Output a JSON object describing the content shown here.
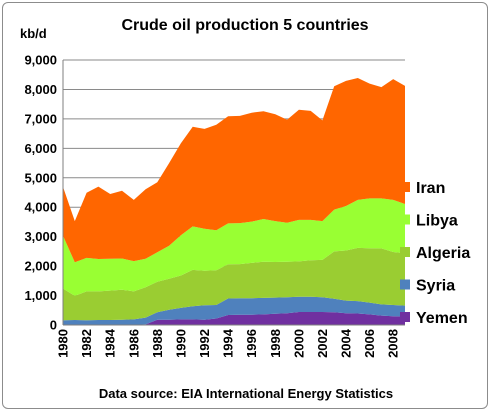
{
  "chart_data": {
    "type": "area",
    "stacked": true,
    "title": "Crude oil production 5 countries",
    "ylabel": "kb/d",
    "xlabel": "",
    "source": "Data source: EIA International Energy Statistics",
    "ylim": [
      0,
      9000
    ],
    "yticks": [
      "0",
      "1,000",
      "2,000",
      "3,000",
      "4,000",
      "5,000",
      "6,000",
      "7,000",
      "8,000",
      "9,000"
    ],
    "ytick_values": [
      0,
      1000,
      2000,
      3000,
      4000,
      5000,
      6000,
      7000,
      8000,
      9000
    ],
    "xtick_labels": [
      "1980",
      "1982",
      "1984",
      "1986",
      "1988",
      "1990",
      "1992",
      "1994",
      "1996",
      "1998",
      "2000",
      "2002",
      "2004",
      "2006",
      "2008"
    ],
    "x": [
      1980,
      1981,
      1982,
      1983,
      1984,
      1985,
      1986,
      1987,
      1988,
      1989,
      1990,
      1991,
      1992,
      1993,
      1994,
      1995,
      1996,
      1997,
      1998,
      1999,
      2000,
      2001,
      2002,
      2003,
      2004,
      2005,
      2006,
      2007,
      2008,
      2009
    ],
    "grid": "horizontal",
    "legend_position": "right",
    "series": [
      {
        "name": "Yemen",
        "color": "#7030a0",
        "values": [
          0,
          0,
          0,
          0,
          0,
          0,
          10,
          20,
          180,
          180,
          190,
          190,
          180,
          220,
          340,
          350,
          350,
          360,
          380,
          400,
          440,
          440,
          440,
          430,
          400,
          390,
          360,
          320,
          300,
          290
        ]
      },
      {
        "name": "Syria",
        "color": "#4f81bd",
        "values": [
          160,
          170,
          160,
          170,
          170,
          180,
          180,
          230,
          250,
          340,
          390,
          450,
          490,
          460,
          560,
          560,
          560,
          560,
          550,
          540,
          520,
          520,
          500,
          460,
          430,
          420,
          400,
          380,
          380,
          370
        ]
      },
      {
        "name": "Algeria",
        "color": "#9acd32",
        "values": [
          1080,
          820,
          980,
          970,
          1000,
          1020,
          950,
          1030,
          1040,
          1050,
          1100,
          1230,
          1170,
          1180,
          1160,
          1160,
          1200,
          1230,
          1210,
          1210,
          1200,
          1240,
          1270,
          1610,
          1700,
          1810,
          1850,
          1900,
          1800,
          1780
        ]
      },
      {
        "name": "Libya",
        "color": "#99ff33",
        "values": [
          1790,
          1140,
          1140,
          1100,
          1080,
          1060,
          1030,
          970,
          1000,
          1120,
          1370,
          1480,
          1430,
          1360,
          1390,
          1390,
          1400,
          1450,
          1390,
          1320,
          1410,
          1370,
          1320,
          1420,
          1510,
          1630,
          1690,
          1700,
          1770,
          1670
        ]
      },
      {
        "name": "Iran",
        "color": "#ff6600",
        "values": [
          1660,
          1400,
          2210,
          2460,
          2200,
          2300,
          2080,
          2360,
          2380,
          2810,
          3120,
          3380,
          3390,
          3580,
          3640,
          3640,
          3700,
          3660,
          3630,
          3500,
          3740,
          3700,
          3420,
          4190,
          4250,
          4140,
          3900,
          3780,
          4100,
          4010
        ]
      }
    ]
  }
}
